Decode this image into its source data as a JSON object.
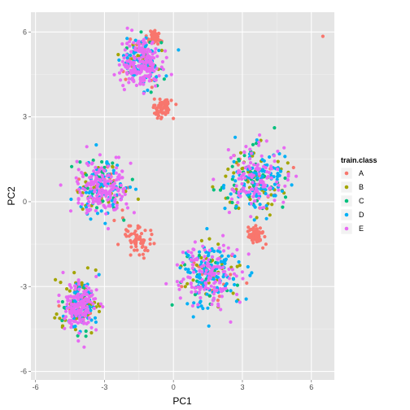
{
  "chart_data": {
    "type": "scatter",
    "xlabel": "PC1",
    "ylabel": "PC2",
    "xlim": [
      -6.2,
      7.0
    ],
    "ylim": [
      -6.3,
      6.7
    ],
    "x_ticks": [
      -6,
      -3,
      0,
      3,
      6
    ],
    "y_ticks": [
      -6,
      -3,
      0,
      3,
      6
    ],
    "x_tick_labels": [
      "-6",
      "-3",
      "0",
      "3",
      "6"
    ],
    "y_tick_labels": [
      "-6",
      "-3",
      "0",
      "3",
      "6"
    ],
    "grid": true,
    "legend": {
      "title": "train.class",
      "position": "right"
    },
    "series": [
      {
        "name": "A",
        "color": "#F8766D"
      },
      {
        "name": "B",
        "color": "#A3A500"
      },
      {
        "name": "C",
        "color": "#00BF7D"
      },
      {
        "name": "D",
        "color": "#00B0F6"
      },
      {
        "name": "E",
        "color": "#E76BF3"
      }
    ],
    "clusters": [
      {
        "cx": -1.4,
        "cy": 4.9,
        "sx": 0.45,
        "sy": 0.45,
        "weights": {
          "A": 0.06,
          "B": 0.07,
          "C": 0.07,
          "D": 0.2,
          "E": 0.6
        }
      },
      {
        "cx": -3.1,
        "cy": 0.5,
        "sx": 0.55,
        "sy": 0.5,
        "weights": {
          "A": 0.04,
          "B": 0.12,
          "C": 0.08,
          "D": 0.22,
          "E": 0.54
        }
      },
      {
        "cx": 3.6,
        "cy": 0.75,
        "sx": 0.65,
        "sy": 0.55,
        "weights": {
          "A": 0.04,
          "B": 0.16,
          "C": 0.14,
          "D": 0.3,
          "E": 0.36
        }
      },
      {
        "cx": 1.6,
        "cy": -2.6,
        "sx": 0.65,
        "sy": 0.6,
        "weights": {
          "A": 0.04,
          "B": 0.1,
          "C": 0.08,
          "D": 0.36,
          "E": 0.42
        }
      },
      {
        "cx": -4.1,
        "cy": -3.7,
        "sx": 0.4,
        "sy": 0.45,
        "weights": {
          "A": 0.03,
          "B": 0.22,
          "C": 0.08,
          "D": 0.16,
          "E": 0.51
        }
      },
      {
        "cx": -1.6,
        "cy": -1.3,
        "sx": 0.3,
        "sy": 0.3,
        "weights": {
          "A": 1.0
        }
      },
      {
        "cx": -0.5,
        "cy": 3.3,
        "sx": 0.2,
        "sy": 0.2,
        "weights": {
          "A": 1.0
        }
      },
      {
        "cx": -0.8,
        "cy": 5.8,
        "sx": 0.12,
        "sy": 0.12,
        "weights": {
          "A": 1.0
        }
      },
      {
        "cx": 3.6,
        "cy": -1.2,
        "sx": 0.15,
        "sy": 0.15,
        "weights": {
          "A": 1.0
        }
      }
    ],
    "outliers": [
      {
        "x": 6.5,
        "y": 5.85,
        "class": "A"
      }
    ]
  }
}
